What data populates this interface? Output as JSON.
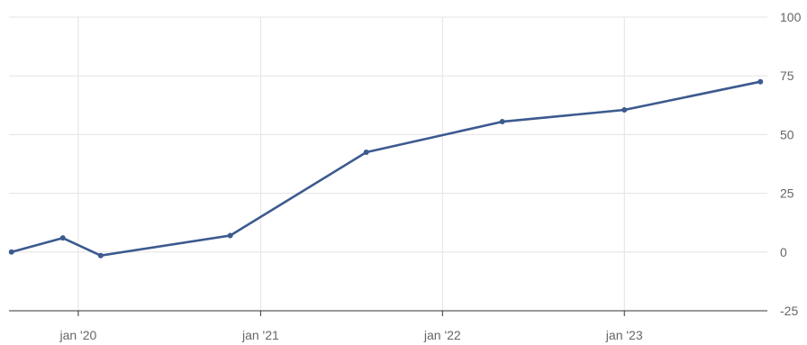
{
  "chart_data": {
    "type": "line",
    "title": "",
    "xlabel": "",
    "ylabel": "",
    "ylim": [
      -25,
      100
    ],
    "y_ticks": [
      100,
      75,
      50,
      25,
      0,
      -25
    ],
    "x_ticks": [
      {
        "date": "2020-01-01",
        "label": "jan '20"
      },
      {
        "date": "2021-01-01",
        "label": "jan '21"
      },
      {
        "date": "2022-01-01",
        "label": "jan '22"
      },
      {
        "date": "2023-01-01",
        "label": "jan '23"
      }
    ],
    "xlim": [
      "2019-08-15",
      "2023-10-15"
    ],
    "grid": true,
    "y_axis_position": "right",
    "series": [
      {
        "color": "#3c5a8f",
        "points": [
          {
            "x": "2019-08-20",
            "y": 0
          },
          {
            "x": "2019-12-01",
            "y": 6
          },
          {
            "x": "2020-02-15",
            "y": -1.5
          },
          {
            "x": "2020-11-01",
            "y": 7
          },
          {
            "x": "2021-08-01",
            "y": 42.5
          },
          {
            "x": "2022-05-01",
            "y": 55.5
          },
          {
            "x": "2023-01-01",
            "y": 60.5
          },
          {
            "x": "2023-10-01",
            "y": 72.5
          }
        ]
      }
    ]
  }
}
